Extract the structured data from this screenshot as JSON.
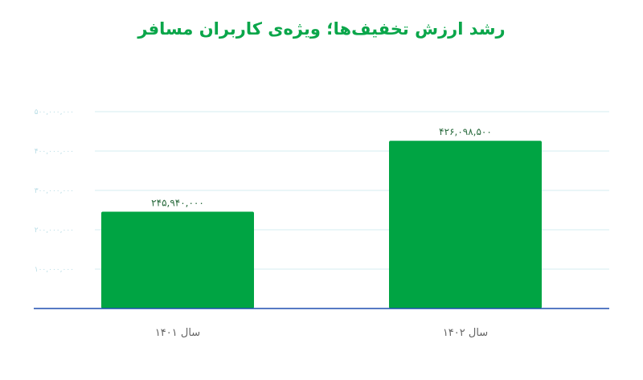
{
  "chart_data": {
    "type": "bar",
    "title": "رشد ارزش تخفیف‌ها؛ ویژه‌ی کاربران مسافر",
    "categories": [
      "سال ۱۴۰۱",
      "سال ۱۴۰۲"
    ],
    "values": [
      245940000,
      426098500
    ],
    "value_labels": [
      "۲۴۵,۹۴۰,۰۰۰",
      "۴۲۶,۰۹۸,۵۰۰"
    ],
    "ylim": [
      0,
      500000000
    ],
    "yticks": [
      100000000,
      200000000,
      300000000,
      400000000,
      500000000
    ],
    "ytick_labels": [
      "۱۰۰,۰۰۰,۰۰۰",
      "۲۰۰,۰۰۰,۰۰۰",
      "۳۰۰,۰۰۰,۰۰۰",
      "۴۰۰,۰۰۰,۰۰۰",
      "۵۰۰,۰۰۰,۰۰۰"
    ],
    "xlabel": "",
    "ylabel": "",
    "grid": true,
    "legend": "none",
    "bar_color": "#00a443",
    "axis_color": "#1f4fb0",
    "grid_color": "#d6eef2"
  }
}
